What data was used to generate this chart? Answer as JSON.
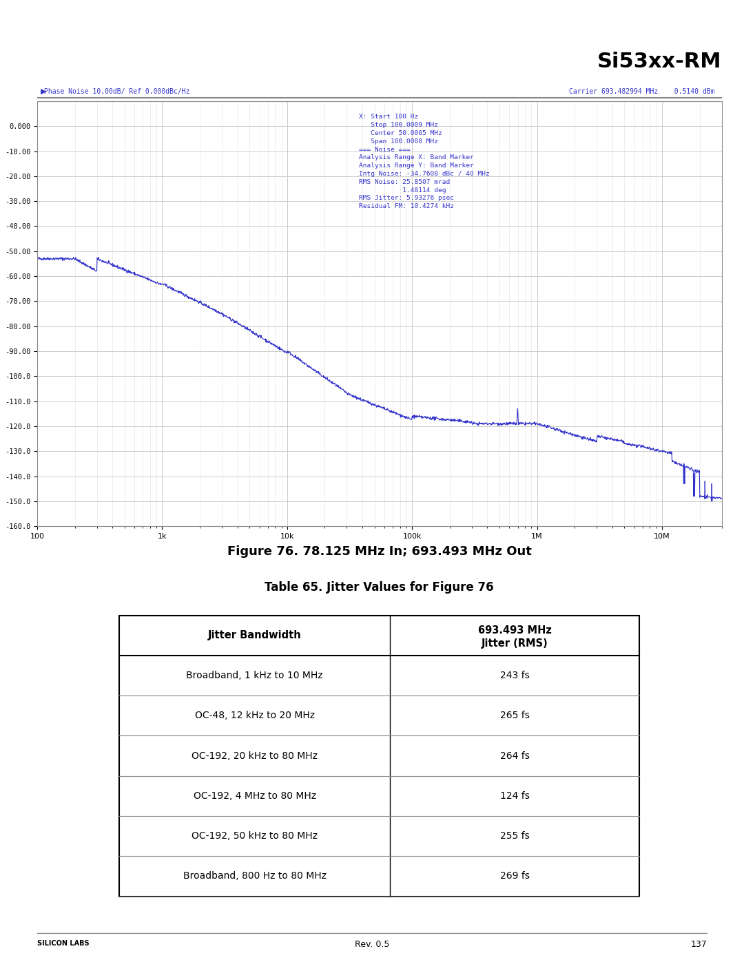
{
  "page_title": "Si53xx-RM",
  "figure_caption": "Figure 76. 78.125 MHz In; 693.493 MHz Out",
  "table_title": "Table 65. Jitter Values for Figure 76",
  "header_col1": "Jitter Bandwidth",
  "header_col2": "693.493 MHz\nJitter (RMS)",
  "table_rows": [
    [
      "Broadband, 1 kHz to 10 MHz",
      "243 fs"
    ],
    [
      "OC-48, 12 kHz to 20 MHz",
      "265 fs"
    ],
    [
      "OC-192, 20 kHz to 80 MHz",
      "264 fs"
    ],
    [
      "OC-192, 4 MHz to 80 MHz",
      "124 fs"
    ],
    [
      "OC-192, 50 kHz to 80 MHz",
      "255 fs"
    ],
    [
      "Broadband, 800 Hz to 80 MHz",
      "269 fs"
    ]
  ],
  "plot_ylabel_text": "Phase Noise 10.00dB/ Ref 0.000dBc/Hz",
  "carrier_text": "Carrier 693.482994 MHz    0.5140 dBm",
  "annotation_text": "X: Start 100 Hz\n   Stop 100.0009 MHz\n   Center 50.0005 MHz\n   Span 100.0008 MHz\n=== Noise ===\nAnalysis Range X: Band Marker\nAnalysis Range Y: Band Marker\nIntg Noise: -34.7608 dBc / 40 MHz\nRMS Noise: 25.8507 mrad\n           1.48114 deg\nRMS Jitter: 5.93276 psec\nResidual FM: 10.4274 kHz",
  "ylim": [
    -160,
    10
  ],
  "yticks": [
    0,
    -10,
    -20,
    -30,
    -40,
    -50,
    -60,
    -70,
    -80,
    -90,
    -100,
    -110,
    -120,
    -130,
    -140,
    -150,
    -160
  ],
  "ytick_labels": [
    "0.000",
    "-10.00",
    "-20.00",
    "-30.00",
    "-40.00",
    "-50.00",
    "-60.00",
    "-70.00",
    "-80.00",
    "-90.00",
    "-100.0",
    "-110.0",
    "-120.0",
    "-130.0",
    "-140.0",
    "-150.0",
    "-160.0"
  ],
  "xmin": 100,
  "xmax": 30000000,
  "line_color": "#3333cc",
  "background_color": "#ffffff",
  "plot_bg_color": "#ffffff",
  "grid_color": "#cccccc",
  "text_color": "#3333cc",
  "rev_text": "Rev. 0.5",
  "page_num": "137"
}
